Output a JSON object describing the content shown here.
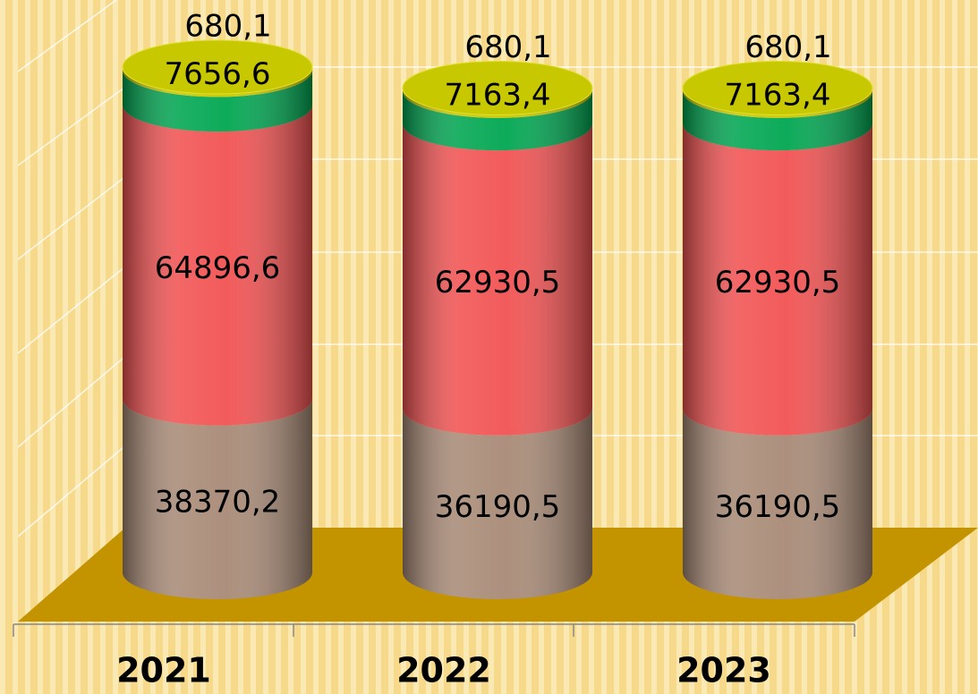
{
  "chart_data": {
    "type": "stacked-cylinder",
    "categories": [
      "2021",
      "2022",
      "2023"
    ],
    "series": [
      {
        "color": "#a88a76",
        "values": [
          38370.2,
          36190.5,
          36190.5
        ],
        "value_labels": [
          "38370,2",
          "36190,5",
          "36190,5"
        ]
      },
      {
        "color": "#f25252",
        "values": [
          64896.6,
          62930.5,
          62930.5
        ],
        "value_labels": [
          "64896,6",
          "62930,5",
          "62930,5"
        ]
      },
      {
        "color": "#00a651",
        "values": [
          7656.6,
          7163.4,
          7163.4
        ],
        "value_labels": [
          "7656,6",
          "7163,4",
          "7163,4"
        ]
      },
      {
        "color": "#c8c800",
        "values": [
          680.1,
          680.1,
          680.1
        ],
        "value_labels": [
          "680,1",
          "680,1",
          "680,1"
        ]
      }
    ]
  }
}
